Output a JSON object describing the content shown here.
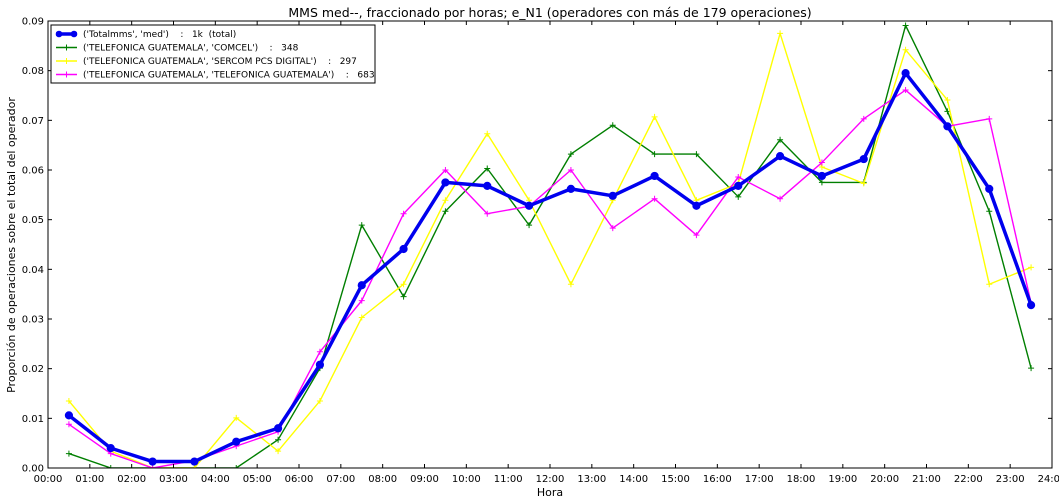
{
  "chart_data": {
    "type": "line",
    "title": "MMS med--, fraccionado por horas; e_N1 (operadores con más de 179 operaciones)",
    "xlabel": "Hora",
    "ylabel": "Proporción de operaciones sobre el total del operador",
    "x_ticks": [
      "00:00",
      "01:00",
      "02:00",
      "03:00",
      "04:00",
      "05:00",
      "06:00",
      "07:00",
      "08:00",
      "09:00",
      "10:00",
      "11:00",
      "12:00",
      "13:00",
      "14:00",
      "15:00",
      "16:00",
      "17:00",
      "18:00",
      "19:00",
      "20:00",
      "21:00",
      "22:00",
      "23:00",
      "24:00"
    ],
    "y_ticks": [
      "0.00",
      "0.01",
      "0.02",
      "0.03",
      "0.04",
      "0.05",
      "0.06",
      "0.07",
      "0.08",
      "0.09"
    ],
    "xlim": [
      0,
      24
    ],
    "ylim": [
      0,
      0.09
    ],
    "grid": false,
    "legend_position": "top-left",
    "x": [
      0.5,
      1.5,
      2.5,
      3.5,
      4.5,
      5.5,
      6.5,
      7.5,
      8.5,
      9.5,
      10.5,
      11.5,
      12.5,
      13.5,
      14.5,
      15.5,
      16.5,
      17.5,
      18.5,
      19.5,
      20.5,
      21.5,
      22.5,
      23.5
    ],
    "series": [
      {
        "name": "('Totalmms', 'med')    :   1k  (total)",
        "color": "#0000ee",
        "marker": "circle",
        "values": [
          0.0106,
          0.004,
          0.0013,
          0.0013,
          0.0053,
          0.008,
          0.0208,
          0.0368,
          0.0441,
          0.0575,
          0.0568,
          0.0528,
          0.0562,
          0.0548,
          0.0588,
          0.0528,
          0.0568,
          0.0628,
          0.0588,
          0.0622,
          0.0795,
          0.0688,
          0.0562,
          0.0328
        ]
      },
      {
        "name": "('TELEFONICA GUATEMALA', 'COMCEL')    :   348",
        "color": "#007f00",
        "marker": "plus",
        "values": [
          0.0029,
          0.0,
          0.0,
          0.0,
          0.0,
          0.0057,
          0.0201,
          0.0489,
          0.0345,
          0.0517,
          0.0603,
          0.0489,
          0.0632,
          0.069,
          0.0632,
          0.0632,
          0.0546,
          0.0661,
          0.0575,
          0.0575,
          0.0891,
          0.0718,
          0.0517,
          0.0201
        ]
      },
      {
        "name": "('TELEFONICA GUATEMALA', 'SERCOM PCS DIGITAL')    :   297",
        "color": "#ffff00",
        "marker": "plus",
        "values": [
          0.0135,
          0.0034,
          0.0,
          0.0,
          0.0101,
          0.0034,
          0.0135,
          0.0303,
          0.037,
          0.0539,
          0.0673,
          0.0539,
          0.037,
          0.0539,
          0.0707,
          0.0539,
          0.0573,
          0.0875,
          0.0606,
          0.0573,
          0.0842,
          0.0741,
          0.037,
          0.0404
        ]
      },
      {
        "name": "('TELEFONICA GUATEMALA', 'TELEFONICA GUATEMALA')    :   683",
        "color": "#ff00ff",
        "marker": "plus",
        "values": [
          0.0088,
          0.0029,
          0.0,
          0.0015,
          0.0044,
          0.0073,
          0.0234,
          0.0337,
          0.0512,
          0.06,
          0.0512,
          0.0527,
          0.06,
          0.0483,
          0.0542,
          0.0469,
          0.0586,
          0.0542,
          0.0615,
          0.0703,
          0.0761,
          0.0688,
          0.0703,
          0.0332
        ]
      }
    ]
  }
}
